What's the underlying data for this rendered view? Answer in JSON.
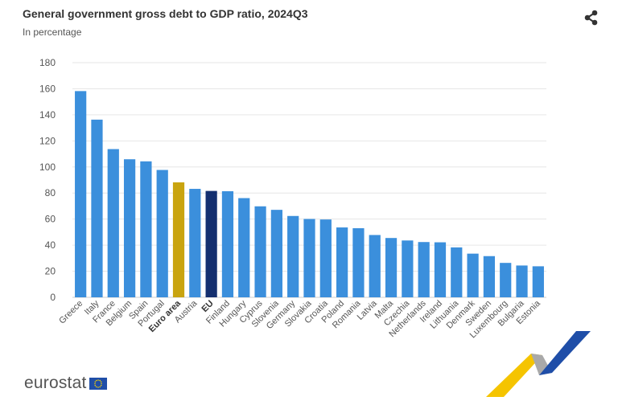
{
  "header": {
    "title": "General government gross debt to GDP ratio, 2024Q3",
    "subtitle": "In percentage"
  },
  "logo": {
    "text": "eurostat"
  },
  "icons": {
    "share": "share-icon",
    "eu_flag": "eu-flag-icon",
    "brand_swoosh": "brand-swoosh-icon"
  },
  "colors": {
    "default": "#3b8fdc",
    "euro_area": "#c9a40f",
    "eu": "#142f6f",
    "grid": "#e6e6e6"
  },
  "chart_data": {
    "type": "bar",
    "ylim": [
      0,
      180
    ],
    "yticks": [
      0,
      20,
      40,
      60,
      80,
      100,
      120,
      140,
      160,
      180
    ],
    "grid": true,
    "categories": [
      "Greece",
      "Italy",
      "France",
      "Belgium",
      "Spain",
      "Portugal",
      "Euro area",
      "Austria",
      "EU",
      "Finland",
      "Hungary",
      "Cyprus",
      "Slovenia",
      "Germany",
      "Slovakia",
      "Croatia",
      "Poland",
      "Romania",
      "Latvia",
      "Malta",
      "Czechia",
      "Netherlands",
      "Ireland",
      "Lithuania",
      "Denmark",
      "Sweden",
      "Luxembourg",
      "Bulgaria",
      "Estonia"
    ],
    "values": [
      158.2,
      136.3,
      113.7,
      105.9,
      104.3,
      97.7,
      88.2,
      83.2,
      81.6,
      81.4,
      76.1,
      69.8,
      67.1,
      62.4,
      60.1,
      59.7,
      53.6,
      53.0,
      47.8,
      45.5,
      43.6,
      42.4,
      42.2,
      38.3,
      33.5,
      31.6,
      26.4,
      24.4,
      23.8
    ],
    "highlight": {
      "Euro area": "euro_area",
      "EU": "eu"
    }
  }
}
